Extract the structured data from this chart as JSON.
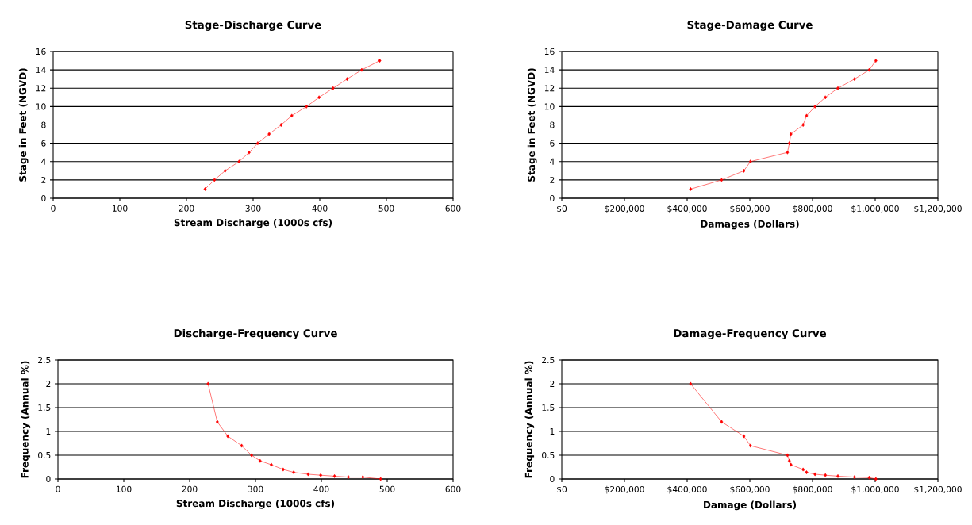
{
  "chart_data": [
    {
      "type": "line",
      "title": "Stage-Discharge Curve",
      "xlabel": "Stream Discharge (1000s cfs)",
      "ylabel": "Stage in Feet (NGVD)",
      "color": "#ff0000",
      "marker": "diamond",
      "grid": "y",
      "x": [
        228,
        242,
        258,
        279,
        294,
        307,
        324,
        342,
        358,
        380,
        399,
        420,
        441,
        463,
        490
      ],
      "values": [
        1,
        2,
        3,
        4,
        5,
        6,
        7,
        8,
        9,
        10,
        11,
        12,
        13,
        14,
        15
      ],
      "xlim": [
        0,
        600
      ],
      "ylim": [
        0,
        16
      ],
      "xticks": [
        0,
        100,
        200,
        300,
        400,
        500,
        600
      ],
      "yticks": [
        0,
        2,
        4,
        6,
        8,
        10,
        12,
        14,
        16
      ]
    },
    {
      "type": "line",
      "title": "Stage-Damage Curve",
      "xlabel": "Damages (Dollars)",
      "ylabel": "Stage in Feet (NGVD)",
      "color": "#ff0000",
      "marker": "diamond",
      "grid": "y",
      "x": [
        411000,
        510000,
        581000,
        602000,
        720000,
        726000,
        731000,
        770000,
        781000,
        808000,
        841000,
        881000,
        934000,
        981000,
        1002000
      ],
      "values": [
        1,
        2,
        3,
        4,
        5,
        6,
        7,
        8,
        9,
        10,
        11,
        12,
        13,
        14,
        15
      ],
      "xlim": [
        0,
        1200000
      ],
      "ylim": [
        0,
        16
      ],
      "xticks": [
        {
          "value": 0,
          "label": "$0"
        },
        {
          "value": 200000,
          "label": "$200,000"
        },
        {
          "value": 400000,
          "label": "$400,000"
        },
        {
          "value": 600000,
          "label": "$600,000"
        },
        {
          "value": 800000,
          "label": "$800,000"
        },
        {
          "value": 1000000,
          "label": "$1,000,000"
        },
        {
          "value": 1200000,
          "label": "$1,200,000"
        }
      ],
      "yticks": [
        0,
        2,
        4,
        6,
        8,
        10,
        12,
        14,
        16
      ]
    },
    {
      "type": "line",
      "title": "Discharge-Frequency Curve",
      "xlabel": "Stream Discharge (1000s cfs)",
      "ylabel": "Frequency (Annual %)",
      "color": "#ff0000",
      "marker": "diamond",
      "grid": "y",
      "x": [
        228,
        242,
        258,
        279,
        294,
        307,
        324,
        342,
        358,
        380,
        399,
        420,
        441,
        463,
        490
      ],
      "values": [
        2,
        1.2,
        0.9,
        0.7,
        0.5,
        0.38,
        0.3,
        0.2,
        0.14,
        0.1,
        0.08,
        0.06,
        0.04,
        0.04,
        0
      ],
      "xlim": [
        0,
        600
      ],
      "ylim": [
        0,
        2.5
      ],
      "xticks": [
        0,
        100,
        200,
        300,
        400,
        500,
        600
      ],
      "yticks": [
        0,
        0.5,
        1,
        1.5,
        2,
        2.5
      ]
    },
    {
      "type": "line",
      "title": "Damage-Frequency Curve",
      "xlabel": "Damage (Dollars)",
      "ylabel": "Frequency (Annual %)",
      "color": "#ff0000",
      "marker": "diamond",
      "grid": "y",
      "x": [
        411000,
        510000,
        581000,
        602000,
        720000,
        726000,
        731000,
        770000,
        781000,
        808000,
        841000,
        881000,
        934000,
        981000,
        1002000
      ],
      "values": [
        2,
        1.2,
        0.9,
        0.7,
        0.5,
        0.38,
        0.3,
        0.2,
        0.14,
        0.1,
        0.08,
        0.06,
        0.04,
        0.03,
        0
      ],
      "xlim": [
        0,
        1200000
      ],
      "ylim": [
        0,
        2.5
      ],
      "xticks": [
        {
          "value": 0,
          "label": "$0"
        },
        {
          "value": 200000,
          "label": "$200,000"
        },
        {
          "value": 400000,
          "label": "$400,000"
        },
        {
          "value": 600000,
          "label": "$600,000"
        },
        {
          "value": 800000,
          "label": "$800,000"
        },
        {
          "value": 1000000,
          "label": "$1,000,000"
        },
        {
          "value": 1200000,
          "label": "$1,200,000"
        }
      ],
      "yticks": [
        0,
        0.5,
        1,
        1.5,
        2,
        2.5
      ]
    }
  ]
}
